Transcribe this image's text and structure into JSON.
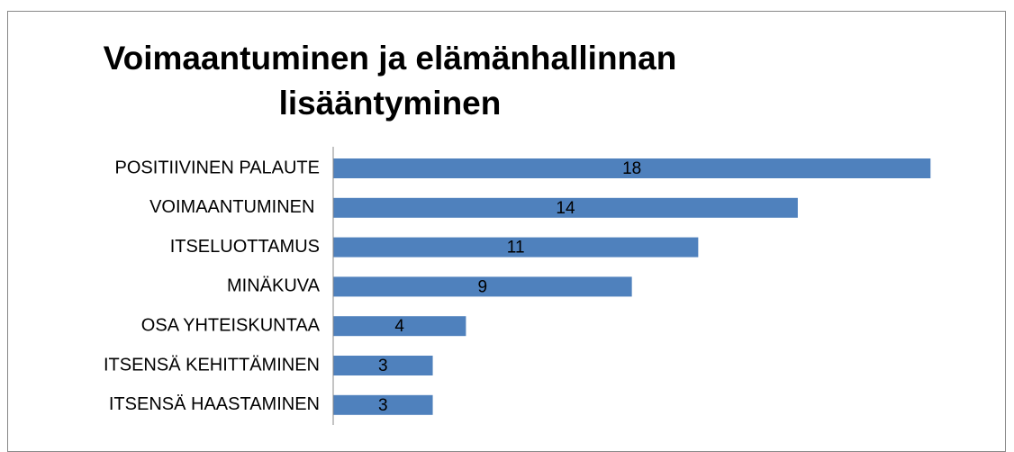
{
  "chart_data": {
    "type": "barh",
    "title": "Voimaantuminen ja elämänhallinnan lisääntyminen",
    "categories": [
      "POSITIIVINEN PALAUTE",
      "VOIMAANTUMINEN ",
      "ITSELUOTTAMUS",
      "MINÄKUVA",
      "OSA YHTEISKUNTAA",
      "ITSENSÄ KEHITTÄMINEN",
      "ITSENSÄ HAASTAMINEN"
    ],
    "values": [
      18,
      14,
      11,
      9,
      4,
      3,
      3
    ],
    "color": "#4f81bd",
    "xlim": [
      0,
      20
    ]
  }
}
